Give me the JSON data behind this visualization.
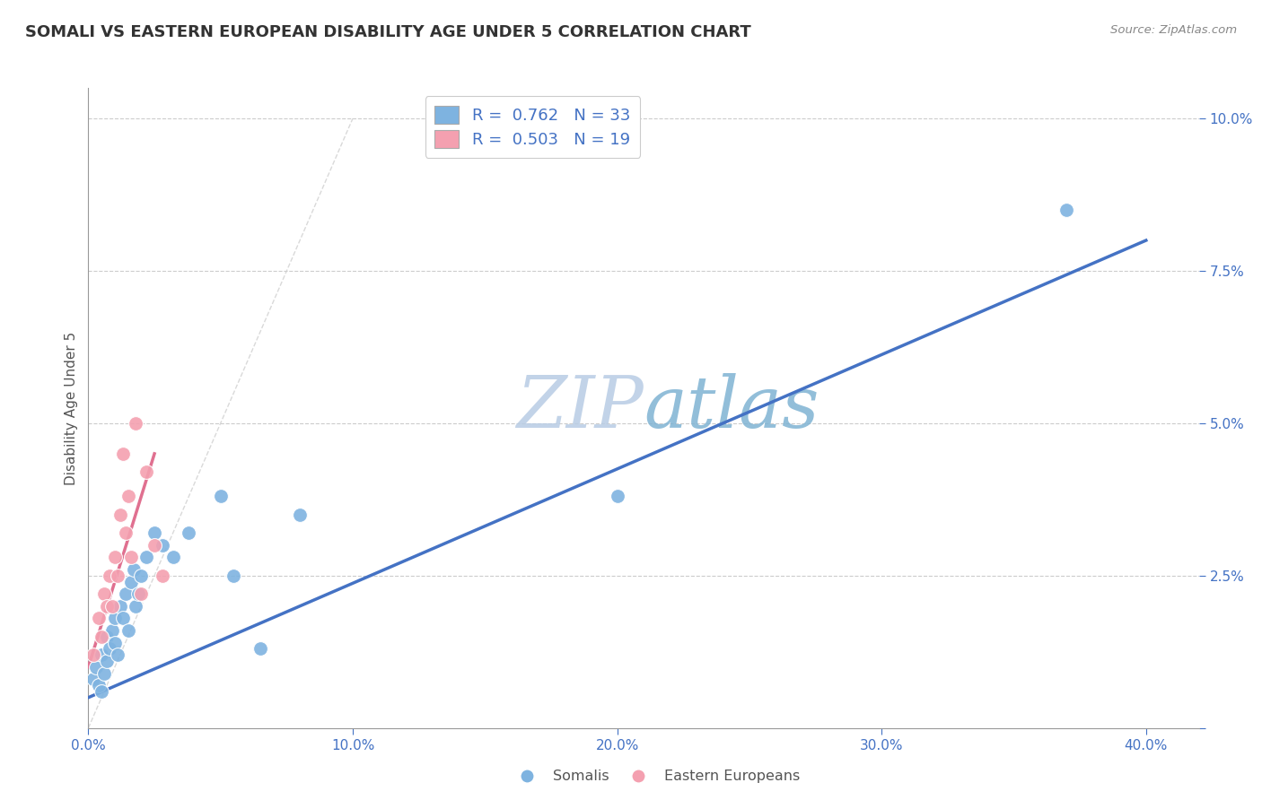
{
  "title": "SOMALI VS EASTERN EUROPEAN DISABILITY AGE UNDER 5 CORRELATION CHART",
  "source_text": "Source: ZipAtlas.com",
  "ylabel": "Disability Age Under 5",
  "xlim": [
    0.0,
    0.42
  ],
  "ylim": [
    0.0,
    0.105
  ],
  "xtick_positions": [
    0.0,
    0.1,
    0.2,
    0.3,
    0.4
  ],
  "ytick_positions": [
    0.0,
    0.025,
    0.05,
    0.075,
    0.1
  ],
  "somali_R": "0.762",
  "somali_N": "33",
  "eastern_R": "0.503",
  "eastern_N": "19",
  "somali_color": "#7eb3e0",
  "eastern_color": "#f4a0b0",
  "somali_line_color": "#4472c4",
  "eastern_line_color": "#e07090",
  "diagonal_color": "#cccccc",
  "watermark_color": "#c8d8f0",
  "background_color": "#ffffff",
  "grid_color": "#cccccc",
  "somali_x": [
    0.002,
    0.003,
    0.004,
    0.005,
    0.005,
    0.006,
    0.007,
    0.007,
    0.008,
    0.009,
    0.01,
    0.01,
    0.011,
    0.012,
    0.013,
    0.014,
    0.015,
    0.016,
    0.017,
    0.018,
    0.019,
    0.02,
    0.022,
    0.025,
    0.028,
    0.032,
    0.038,
    0.05,
    0.055,
    0.065,
    0.08,
    0.2,
    0.37
  ],
  "somali_y": [
    0.008,
    0.01,
    0.007,
    0.012,
    0.006,
    0.009,
    0.015,
    0.011,
    0.013,
    0.016,
    0.014,
    0.018,
    0.012,
    0.02,
    0.018,
    0.022,
    0.016,
    0.024,
    0.026,
    0.02,
    0.022,
    0.025,
    0.028,
    0.032,
    0.03,
    0.028,
    0.032,
    0.038,
    0.025,
    0.013,
    0.035,
    0.038,
    0.085
  ],
  "eastern_x": [
    0.002,
    0.004,
    0.005,
    0.006,
    0.007,
    0.008,
    0.009,
    0.01,
    0.011,
    0.012,
    0.013,
    0.014,
    0.015,
    0.016,
    0.018,
    0.02,
    0.022,
    0.025,
    0.028
  ],
  "eastern_y": [
    0.012,
    0.018,
    0.015,
    0.022,
    0.02,
    0.025,
    0.02,
    0.028,
    0.025,
    0.035,
    0.045,
    0.032,
    0.038,
    0.028,
    0.05,
    0.022,
    0.042,
    0.03,
    0.025
  ],
  "somali_line_x": [
    0.0,
    0.4
  ],
  "somali_line_y": [
    0.005,
    0.08
  ],
  "eastern_line_x": [
    0.0,
    0.025
  ],
  "eastern_line_y": [
    0.01,
    0.045
  ]
}
